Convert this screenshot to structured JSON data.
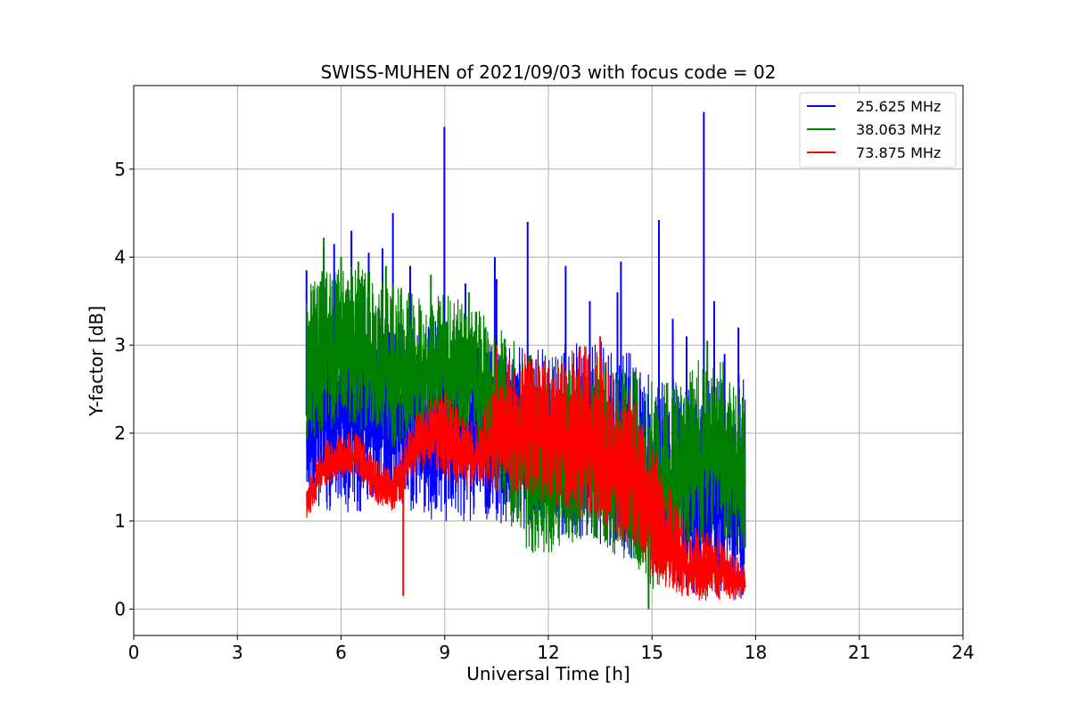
{
  "chart_data": {
    "type": "line",
    "title": "SWISS-MUHEN of 2021/09/03 with focus code = 02",
    "xlabel": "Universal Time [h]",
    "ylabel": "Y-factor [dB]",
    "xlim": [
      0,
      24
    ],
    "ylim": [
      -0.3,
      5.95
    ],
    "xticks": [
      0,
      3,
      6,
      9,
      12,
      15,
      18,
      21,
      24
    ],
    "yticks": [
      0,
      1,
      2,
      3,
      4,
      5
    ],
    "grid": true,
    "legend_position": "top-right",
    "series": [
      {
        "name": "25.625 MHz",
        "color": "#0000ff",
        "envelope": {
          "x": [
            5.0,
            5.5,
            6.0,
            6.5,
            7.0,
            7.5,
            8.0,
            8.5,
            9.0,
            9.5,
            10.0,
            10.5,
            11.0,
            11.5,
            12.0,
            12.5,
            13.0,
            13.5,
            14.0,
            14.5,
            15.0,
            15.5,
            16.0,
            16.5,
            17.0,
            17.5,
            17.7
          ],
          "low": [
            1.2,
            1.1,
            1.1,
            1.1,
            1.2,
            1.2,
            1.1,
            1.0,
            1.0,
            1.0,
            1.0,
            1.0,
            0.9,
            0.9,
            0.9,
            0.8,
            0.8,
            0.7,
            0.6,
            0.5,
            0.4,
            0.3,
            0.2,
            0.1,
            0.1,
            0.1,
            0.1
          ],
          "high": [
            3.2,
            3.5,
            3.6,
            3.7,
            3.5,
            3.4,
            3.3,
            3.3,
            3.3,
            3.2,
            3.1,
            3.1,
            3.0,
            3.0,
            3.0,
            3.1,
            3.1,
            3.1,
            3.0,
            2.9,
            2.8,
            2.6,
            2.5,
            2.6,
            2.7,
            2.7,
            2.6
          ]
        },
        "spikes": [
          {
            "x": 5.0,
            "y": 3.85
          },
          {
            "x": 5.5,
            "y": 4.1
          },
          {
            "x": 5.8,
            "y": 4.15
          },
          {
            "x": 6.3,
            "y": 4.3
          },
          {
            "x": 6.8,
            "y": 4.05
          },
          {
            "x": 7.2,
            "y": 4.1
          },
          {
            "x": 7.5,
            "y": 4.5
          },
          {
            "x": 8.0,
            "y": 3.9
          },
          {
            "x": 8.99,
            "y": 5.48
          },
          {
            "x": 9.6,
            "y": 3.7
          },
          {
            "x": 10.5,
            "y": 3.75
          },
          {
            "x": 10.45,
            "y": 4.0
          },
          {
            "x": 11.4,
            "y": 4.4
          },
          {
            "x": 12.5,
            "y": 3.9
          },
          {
            "x": 13.2,
            "y": 3.5
          },
          {
            "x": 14.0,
            "y": 3.6
          },
          {
            "x": 14.1,
            "y": 3.95
          },
          {
            "x": 15.2,
            "y": 4.42
          },
          {
            "x": 15.6,
            "y": 3.3
          },
          {
            "x": 16.0,
            "y": 3.1
          },
          {
            "x": 16.5,
            "y": 5.65
          },
          {
            "x": 16.8,
            "y": 3.5
          },
          {
            "x": 17.1,
            "y": 2.9
          },
          {
            "x": 17.5,
            "y": 3.2
          }
        ]
      },
      {
        "name": "38.063 MHz",
        "color": "#008000",
        "envelope": {
          "x": [
            5.0,
            5.5,
            6.0,
            6.5,
            7.0,
            7.5,
            8.0,
            8.5,
            9.0,
            9.5,
            10.0,
            10.5,
            11.0,
            11.5,
            12.0,
            12.5,
            13.0,
            13.5,
            14.0,
            14.5,
            15.0,
            15.5,
            16.0,
            16.5,
            17.0,
            17.5,
            17.7
          ],
          "low": [
            1.9,
            2.0,
            2.1,
            2.0,
            1.9,
            1.8,
            1.9,
            2.0,
            2.0,
            2.0,
            1.8,
            1.3,
            0.8,
            0.6,
            0.6,
            0.7,
            0.8,
            0.7,
            0.6,
            0.5,
            0.2,
            0.4,
            0.6,
            0.8,
            0.8,
            0.7,
            0.6
          ],
          "high": [
            3.8,
            3.9,
            3.9,
            3.9,
            3.8,
            3.7,
            3.6,
            3.5,
            3.6,
            3.5,
            3.4,
            3.2,
            3.1,
            3.0,
            2.9,
            2.9,
            2.8,
            2.9,
            2.8,
            2.7,
            2.6,
            2.6,
            2.7,
            2.9,
            2.9,
            2.6,
            2.5
          ]
        },
        "spikes": [
          {
            "x": 5.5,
            "y": 4.22
          },
          {
            "x": 6.0,
            "y": 4.0
          },
          {
            "x": 6.5,
            "y": 3.95
          },
          {
            "x": 7.3,
            "y": 3.9
          },
          {
            "x": 8.6,
            "y": 3.8
          },
          {
            "x": 9.7,
            "y": 3.6
          },
          {
            "x": 14.9,
            "y": 0.0
          },
          {
            "x": 16.6,
            "y": 3.05
          }
        ]
      },
      {
        "name": "73.875 MHz",
        "color": "#ff0000",
        "envelope": {
          "x": [
            5.0,
            5.5,
            6.0,
            6.5,
            7.0,
            7.5,
            8.0,
            8.5,
            9.0,
            9.5,
            10.0,
            10.5,
            11.0,
            11.5,
            12.0,
            12.5,
            13.0,
            13.5,
            14.0,
            14.5,
            15.0,
            15.5,
            16.0,
            16.5,
            17.0,
            17.5,
            17.7
          ],
          "low": [
            1.0,
            1.4,
            1.5,
            1.5,
            1.2,
            1.1,
            1.4,
            1.6,
            1.5,
            1.4,
            1.4,
            1.3,
            1.3,
            1.3,
            1.2,
            1.1,
            1.0,
            0.9,
            0.8,
            0.6,
            0.3,
            0.2,
            0.1,
            0.1,
            0.1,
            0.1,
            0.1
          ],
          "high": [
            1.4,
            1.9,
            2.0,
            2.0,
            1.7,
            1.6,
            2.1,
            2.4,
            2.5,
            2.2,
            2.1,
            2.7,
            2.9,
            2.9,
            2.8,
            2.9,
            3.0,
            3.0,
            2.6,
            2.4,
            1.9,
            1.4,
            1.0,
            0.9,
            0.8,
            0.6,
            0.5
          ]
        },
        "spikes": [
          {
            "x": 7.8,
            "y": 0.15
          },
          {
            "x": 10.5,
            "y": 3.0
          },
          {
            "x": 13.5,
            "y": 3.1
          }
        ]
      }
    ]
  }
}
